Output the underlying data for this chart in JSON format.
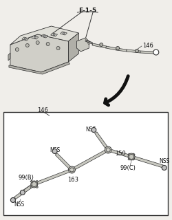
{
  "bg_color": "#f0eeea",
  "line_color": "#333333",
  "text_color": "#111111",
  "title_label": "E-1-5",
  "part_146_label": "146",
  "part_146b_label": "146",
  "part_150_label": "150",
  "part_163_label": "163",
  "part_99b_label": "99(B)",
  "part_99c_label": "99(C)",
  "engine_face": "#d0cfc8",
  "engine_dark": "#b0afa8",
  "engine_light": "#e0dfd8",
  "tube_face": "#c8c8c0",
  "tube_edge": "#555555",
  "fitting_face": "#b0b0a8",
  "arrow_color": "#111111"
}
